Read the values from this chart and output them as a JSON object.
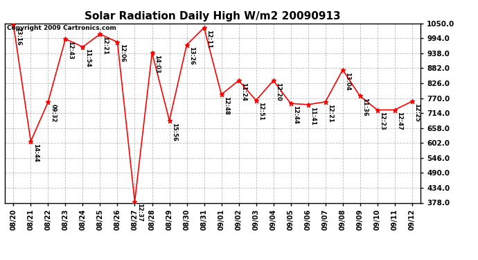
{
  "title": "Solar Radiation Daily High W/m2 20090913",
  "copyright": "Copyright 2009 Cartronics.com",
  "background_color": "#ffffff",
  "line_color": "#ff0000",
  "marker_color": "#ff0000",
  "grid_color": "#bbbbbb",
  "ylim": [
    378.0,
    1050.0
  ],
  "yticks": [
    378.0,
    434.0,
    490.0,
    546.0,
    602.0,
    658.0,
    714.0,
    770.0,
    826.0,
    882.0,
    938.0,
    994.0,
    1050.0
  ],
  "dates": [
    "08/20",
    "08/21",
    "08/22",
    "08/23",
    "08/24",
    "08/25",
    "08/26",
    "08/27",
    "08/28",
    "08/29",
    "08/30",
    "08/31",
    "09/01",
    "09/02",
    "09/03",
    "09/04",
    "09/05",
    "09/06",
    "09/07",
    "09/08",
    "09/09",
    "09/10",
    "09/11",
    "09/12"
  ],
  "values": [
    1044,
    608,
    756,
    992,
    962,
    1010,
    980,
    383,
    940,
    686,
    970,
    1034,
    784,
    836,
    762,
    836,
    750,
    746,
    756,
    876,
    778,
    726,
    726,
    758
  ],
  "time_labels": [
    "13:16",
    "14:44",
    "09:32",
    "12:43",
    "11:54",
    "12:21",
    "12:06",
    "12:37",
    "14:03",
    "15:56",
    "13:26",
    "12:11",
    "12:48",
    "11:24",
    "12:51",
    "12:20",
    "12:44",
    "11:41",
    "12:21",
    "13:04",
    "11:36",
    "12:23",
    "12:47",
    "12:25"
  ],
  "figsize": [
    6.9,
    3.75
  ],
  "dpi": 100
}
